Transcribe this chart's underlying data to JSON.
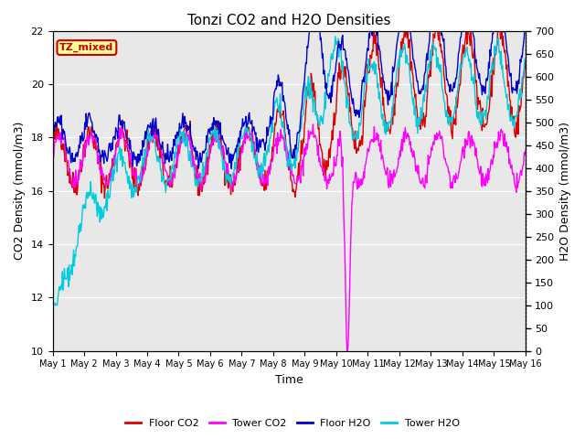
{
  "title": "Tonzi CO2 and H2O Densities",
  "xlabel": "Time",
  "ylabel_left": "CO2 Density (mmol/m3)",
  "ylabel_right": "H2O Density (mmol/m3)",
  "ylim_left": [
    10,
    22
  ],
  "ylim_right": [
    0,
    700
  ],
  "yticks_left": [
    10,
    12,
    14,
    16,
    18,
    20,
    22
  ],
  "yticks_right": [
    0,
    50,
    100,
    150,
    200,
    250,
    300,
    350,
    400,
    450,
    500,
    550,
    600,
    650,
    700
  ],
  "annotation_text": "TZ_mixed",
  "annotation_color": "#cc0000",
  "annotation_bg": "#ffff99",
  "bg_color": "#e8e8e8",
  "line_colors": {
    "floor_co2": "#dd0000",
    "tower_co2": "#ff00ff",
    "floor_h2o": "#0000cc",
    "tower_h2o": "#00ccdd"
  },
  "legend_labels": [
    "Floor CO2",
    "Tower CO2",
    "Floor H2O",
    "Tower H2O"
  ],
  "n_points": 720,
  "seed": 42,
  "figsize": [
    6.4,
    4.8
  ],
  "dpi": 100
}
